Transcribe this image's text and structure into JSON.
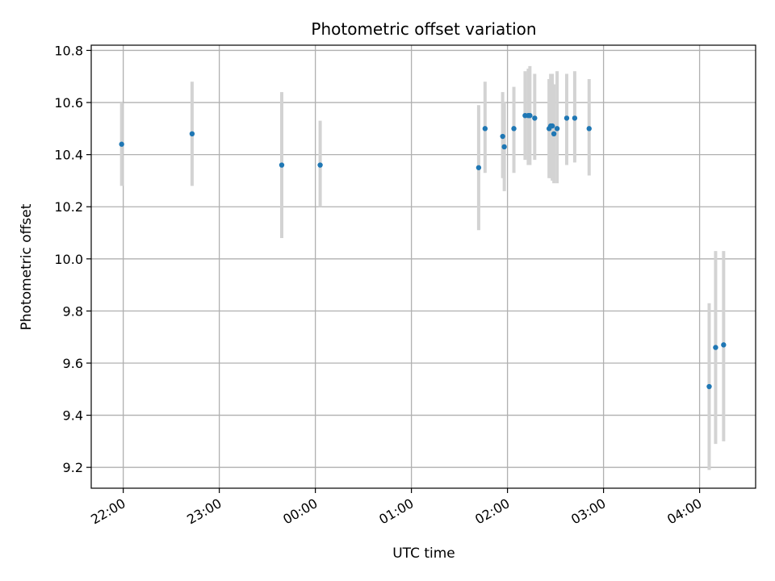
{
  "chart_data": {
    "type": "scatter",
    "title": "Photometric offset variation",
    "xlabel": "UTC time",
    "ylabel": "Photometric offset",
    "x_domain": [
      "21:40",
      "04:35"
    ],
    "ylim": [
      9.12,
      10.82
    ],
    "y_ticks": [
      9.2,
      9.4,
      9.6,
      9.8,
      10.0,
      10.2,
      10.4,
      10.6,
      10.8
    ],
    "y_tick_labels": [
      "9.2",
      "9.4",
      "9.6",
      "9.8",
      "10.0",
      "10.2",
      "10.4",
      "10.6",
      "10.8"
    ],
    "x_ticks": [
      "22:00",
      "23:00",
      "00:00",
      "01:00",
      "02:00",
      "03:00",
      "04:00"
    ],
    "x_tick_labels": [
      "22:00",
      "23:00",
      "00:00",
      "01:00",
      "02:00",
      "03:00",
      "04:00"
    ],
    "grid": true,
    "colors": {
      "point": "#1f77b4",
      "errorbar": "#d3d3d3",
      "grid": "#b0b0b0"
    },
    "series": [
      {
        "points": [
          {
            "x": "21:59",
            "y": 10.44,
            "ylo": 10.28,
            "yhi": 10.6
          },
          {
            "x": "22:43",
            "y": 10.48,
            "ylo": 10.28,
            "yhi": 10.68
          },
          {
            "x": "23:39",
            "y": 10.36,
            "ylo": 10.08,
            "yhi": 10.64
          },
          {
            "x": "00:03",
            "y": 10.36,
            "ylo": 10.2,
            "yhi": 10.53
          },
          {
            "x": "01:42",
            "y": 10.35,
            "ylo": 10.11,
            "yhi": 10.59
          },
          {
            "x": "01:46",
            "y": 10.5,
            "ylo": 10.33,
            "yhi": 10.68
          },
          {
            "x": "01:57",
            "y": 10.47,
            "ylo": 10.31,
            "yhi": 10.64
          },
          {
            "x": "01:58",
            "y": 10.43,
            "ylo": 10.26,
            "yhi": 10.6
          },
          {
            "x": "02:04",
            "y": 10.5,
            "ylo": 10.33,
            "yhi": 10.66
          },
          {
            "x": "02:11",
            "y": 10.55,
            "ylo": 10.38,
            "yhi": 10.72
          },
          {
            "x": "02:13",
            "y": 10.55,
            "ylo": 10.36,
            "yhi": 10.73
          },
          {
            "x": "02:14",
            "y": 10.55,
            "ylo": 10.36,
            "yhi": 10.74
          },
          {
            "x": "02:17",
            "y": 10.54,
            "ylo": 10.38,
            "yhi": 10.71
          },
          {
            "x": "02:26",
            "y": 10.5,
            "ylo": 10.31,
            "yhi": 10.69
          },
          {
            "x": "02:27",
            "y": 10.51,
            "ylo": 10.31,
            "yhi": 10.71
          },
          {
            "x": "02:28",
            "y": 10.51,
            "ylo": 10.3,
            "yhi": 10.71
          },
          {
            "x": "02:29",
            "y": 10.48,
            "ylo": 10.29,
            "yhi": 10.67
          },
          {
            "x": "02:31",
            "y": 10.5,
            "ylo": 10.29,
            "yhi": 10.72
          },
          {
            "x": "02:37",
            "y": 10.54,
            "ylo": 10.36,
            "yhi": 10.71
          },
          {
            "x": "02:42",
            "y": 10.54,
            "ylo": 10.37,
            "yhi": 10.72
          },
          {
            "x": "02:51",
            "y": 10.5,
            "ylo": 10.32,
            "yhi": 10.69
          },
          {
            "x": "04:06",
            "y": 9.51,
            "ylo": 9.19,
            "yhi": 9.83
          },
          {
            "x": "04:10",
            "y": 9.66,
            "ylo": 9.29,
            "yhi": 10.03
          },
          {
            "x": "04:15",
            "y": 9.67,
            "ylo": 9.3,
            "yhi": 10.03
          }
        ]
      }
    ]
  }
}
